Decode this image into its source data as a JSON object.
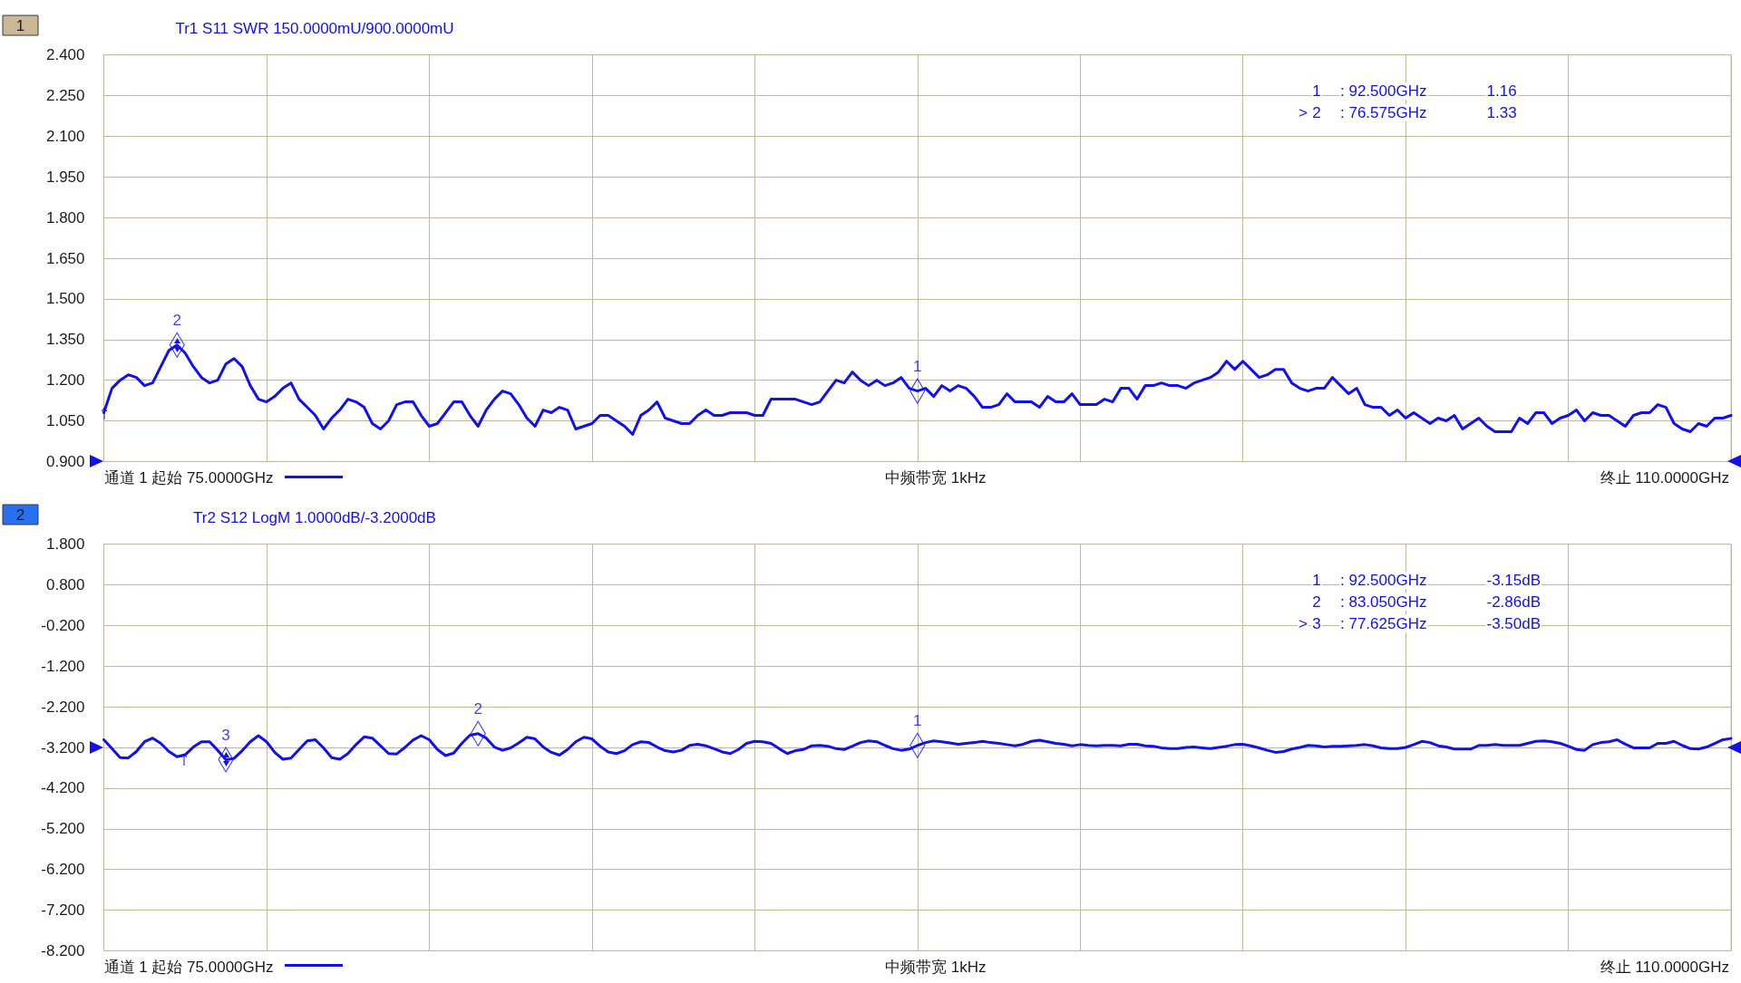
{
  "chart_data": [
    {
      "type": "line",
      "title": "Tr1 S11 SWR 150.0000mU/900.0000mU",
      "categories": [
        null,
        null,
        null,
        null,
        null,
        null,
        null,
        null,
        null,
        null,
        null,
        null,
        null,
        null,
        null,
        null,
        null,
        null,
        null,
        null,
        null,
        null,
        null,
        null,
        null,
        null,
        null,
        null,
        null,
        null,
        null,
        null,
        null,
        null,
        null,
        null,
        null,
        null,
        null,
        null,
        null,
        null,
        null,
        null,
        null,
        null,
        null,
        null,
        null,
        null,
        null,
        null,
        null,
        null,
        null,
        null,
        null,
        null,
        null,
        null,
        null,
        null,
        null,
        null,
        null,
        null,
        null,
        null,
        null,
        null,
        null,
        null,
        null,
        null,
        null,
        null,
        null,
        null,
        null,
        null,
        null,
        null,
        null,
        null,
        null,
        null,
        null,
        null,
        null,
        null,
        null,
        null,
        null,
        null,
        null,
        null,
        null,
        null,
        null,
        null,
        null,
        null,
        null,
        null,
        null,
        null,
        null,
        null,
        null,
        null,
        null,
        null,
        null,
        null,
        null,
        null,
        null,
        null,
        null,
        null,
        null,
        null,
        null,
        null,
        null,
        null,
        null,
        null,
        null,
        null,
        null,
        null,
        null,
        null,
        null,
        null,
        null,
        null,
        null,
        null,
        null,
        null,
        null,
        null,
        null,
        null,
        null,
        null,
        null,
        null,
        null,
        null,
        null,
        null,
        null,
        null,
        null,
        null,
        null,
        null,
        null,
        null,
        null,
        null,
        null,
        null,
        null,
        null,
        null,
        null,
        null,
        null,
        null,
        null,
        null,
        null,
        null,
        null,
        null,
        null,
        null,
        null,
        null,
        null,
        null,
        null,
        null,
        null,
        null,
        null,
        null,
        null,
        null,
        null,
        null,
        null,
        null,
        null,
        null,
        null,
        null
      ],
      "series": [
        {
          "color": "#1010f0",
          "values": [
            1.08,
            1.17,
            1.2,
            1.22,
            1.21,
            1.18,
            1.19,
            1.25,
            1.31,
            1.33,
            1.3,
            1.25,
            1.21,
            1.19,
            1.2,
            1.26,
            1.28,
            1.25,
            1.18,
            1.13,
            1.12,
            1.14,
            1.17,
            1.19,
            1.13,
            1.1,
            1.07,
            1.02,
            1.06,
            1.09,
            1.13,
            1.12,
            1.1,
            1.04,
            1.02,
            1.05,
            1.11,
            1.12,
            1.12,
            1.07,
            1.03,
            1.04,
            1.08,
            1.12,
            1.12,
            1.07,
            1.03,
            1.09,
            1.13,
            1.16,
            1.15,
            1.11,
            1.06,
            1.03,
            1.09,
            1.08,
            1.1,
            1.09,
            1.02,
            1.03,
            1.04,
            1.07,
            1.07,
            1.05,
            1.03,
            1.0,
            1.07,
            1.09,
            1.12,
            1.06,
            1.05,
            1.04,
            1.04,
            1.07,
            1.09,
            1.07,
            1.07,
            1.08,
            1.08,
            1.08,
            1.07,
            1.07,
            1.13,
            1.13,
            1.13,
            1.13,
            1.12,
            1.11,
            1.12,
            1.16,
            1.2,
            1.19,
            1.23,
            1.2,
            1.18,
            1.2,
            1.18,
            1.19,
            1.21,
            1.17,
            1.16,
            1.17,
            1.14,
            1.18,
            1.16,
            1.18,
            1.17,
            1.14,
            1.1,
            1.1,
            1.11,
            1.15,
            1.12,
            1.12,
            1.12,
            1.1,
            1.14,
            1.12,
            1.12,
            1.15,
            1.11,
            1.11,
            1.11,
            1.13,
            1.12,
            1.17,
            1.17,
            1.13,
            1.18,
            1.18,
            1.19,
            1.18,
            1.18,
            1.17,
            1.19,
            1.2,
            1.21,
            1.23,
            1.27,
            1.24,
            1.27,
            1.24,
            1.21,
            1.22,
            1.24,
            1.24,
            1.19,
            1.17,
            1.16,
            1.17,
            1.17,
            1.21,
            1.18,
            1.15,
            1.17,
            1.11,
            1.1,
            1.1,
            1.07,
            1.09,
            1.06,
            1.08,
            1.06,
            1.04,
            1.06,
            1.05,
            1.07,
            1.02,
            1.04,
            1.06,
            1.03,
            1.01,
            1.01,
            1.01,
            1.06,
            1.04,
            1.08,
            1.08,
            1.04,
            1.06,
            1.07,
            1.09,
            1.05,
            1.08,
            1.07,
            1.07,
            1.05,
            1.03,
            1.07,
            1.08,
            1.08,
            1.11,
            1.1,
            1.04,
            1.02,
            1.01,
            1.04,
            1.03,
            1.06,
            1.06,
            1.07
          ]
        },
        {
          "type": "scatter",
          "marker": "diamond",
          "color": "#1010f0",
          "values": [
            null,
            null,
            null,
            null,
            null,
            null,
            null,
            null,
            null,
            1.33,
            null,
            null,
            null,
            null,
            null,
            null,
            null,
            null,
            null,
            null,
            null,
            null,
            null,
            null,
            null,
            null,
            null,
            null,
            null,
            null,
            null,
            null,
            null,
            null,
            null,
            null,
            null,
            null,
            null,
            null,
            null,
            null,
            null,
            null,
            null,
            null,
            null,
            null,
            null,
            null,
            null,
            null,
            null,
            null,
            null,
            null,
            null,
            null,
            null,
            null,
            null,
            null,
            null,
            null,
            null,
            null,
            null,
            null,
            null,
            null,
            null,
            null,
            null,
            null,
            null,
            null,
            null,
            null,
            null,
            null,
            null,
            null,
            null,
            null,
            null,
            null,
            null,
            null,
            null,
            null,
            null,
            null,
            null,
            null,
            null,
            null,
            null,
            null,
            null,
            null,
            1.16,
            null,
            null,
            null,
            null,
            null,
            null,
            null,
            null,
            null,
            null,
            null,
            null,
            null,
            null,
            null,
            null,
            null,
            null,
            null,
            null,
            null,
            null,
            null,
            null,
            null,
            null,
            null,
            null,
            null,
            null,
            null,
            null,
            null,
            null,
            null,
            null,
            null,
            null,
            null,
            null,
            null,
            null,
            null,
            null,
            null,
            null,
            null,
            null,
            null,
            null,
            null,
            null,
            null,
            null,
            null,
            null,
            null,
            null,
            null,
            null,
            null,
            null,
            null,
            null,
            null,
            null,
            null,
            null,
            null,
            null,
            null,
            null,
            null,
            null,
            null,
            null,
            null,
            null,
            null,
            null,
            null,
            null,
            null,
            null,
            null,
            null,
            null,
            null,
            null,
            null,
            null,
            null,
            null,
            null,
            null,
            null,
            null,
            null,
            null,
            null
          ]
        }
      ],
      "ylim": [
        0.9,
        2.4
      ],
      "yticks": [
        {
          "value": 0.9,
          "label": "0.900"
        },
        {
          "value": 1.05,
          "label": "1.050"
        },
        {
          "value": 1.2,
          "label": "1.200"
        },
        {
          "value": 1.35,
          "label": "1.350"
        },
        {
          "value": 1.5,
          "label": "1.500"
        },
        {
          "value": 1.65,
          "label": "1.650"
        },
        {
          "value": 1.8,
          "label": "1.800"
        },
        {
          "value": 1.95,
          "label": "1.950"
        },
        {
          "value": 2.1,
          "label": "2.100"
        },
        {
          "value": 2.25,
          "label": "2.250"
        },
        {
          "value": 2.4,
          "label": "2.400"
        }
      ],
      "grid": true,
      "tick_labels": "y",
      "annotations": [
        "1",
        "通道 1 起始 75.0000GHz",
        "中频带宽 1kHz",
        "终止 110.0000GHz",
        "1 : 92.500GHz 1.16",
        "> 2 : 76.575GHz 1.33",
        "2",
        "1"
      ]
    },
    {
      "type": "line",
      "title": "Tr2 S12 LogM 1.0000dB/-3.2000dB",
      "categories": [
        null,
        null,
        null,
        null,
        null,
        null,
        null,
        null,
        null,
        null,
        null,
        null,
        null,
        null,
        null,
        null,
        null,
        null,
        null,
        null,
        null,
        null,
        null,
        null,
        null,
        null,
        null,
        null,
        null,
        null,
        null,
        null,
        null,
        null,
        null,
        null,
        null,
        null,
        null,
        null,
        null,
        null,
        null,
        null,
        null,
        null,
        null,
        null,
        null,
        null,
        null,
        null,
        null,
        null,
        null,
        null,
        null,
        null,
        null,
        null,
        null,
        null,
        null,
        null,
        null,
        null,
        null,
        null,
        null,
        null,
        null,
        null,
        null,
        null,
        null,
        null,
        null,
        null,
        null,
        null,
        null,
        null,
        null,
        null,
        null,
        null,
        null,
        null,
        null,
        null,
        null,
        null,
        null,
        null,
        null,
        null,
        null,
        null,
        null,
        null,
        null,
        null,
        null,
        null,
        null,
        null,
        null,
        null,
        null,
        null,
        null,
        null,
        null,
        null,
        null,
        null,
        null,
        null,
        null,
        null,
        null,
        null,
        null,
        null,
        null,
        null,
        null,
        null,
        null,
        null,
        null,
        null,
        null,
        null,
        null,
        null,
        null,
        null,
        null,
        null,
        null,
        null,
        null,
        null,
        null,
        null,
        null,
        null,
        null,
        null,
        null,
        null,
        null,
        null,
        null,
        null,
        null,
        null,
        null,
        null,
        null,
        null,
        null,
        null,
        null,
        null,
        null,
        null,
        null,
        null,
        null,
        null,
        null,
        null,
        null,
        null,
        null,
        null,
        null,
        null,
        null,
        null,
        null,
        null,
        null,
        null,
        null,
        null,
        null,
        null,
        null,
        null,
        null,
        null,
        null,
        null,
        null,
        null,
        null,
        null,
        null
      ],
      "series": [
        {
          "color": "#1010f0",
          "values": [
            -3.01,
            -3.23,
            -3.45,
            -3.46,
            -3.3,
            -3.06,
            -2.97,
            -3.1,
            -3.3,
            -3.43,
            -3.38,
            -3.19,
            -3.06,
            -3.06,
            -3.27,
            -3.5,
            -3.47,
            -3.28,
            -3.06,
            -2.91,
            -3.06,
            -3.32,
            -3.49,
            -3.46,
            -3.25,
            -3.04,
            -3.01,
            -3.21,
            -3.45,
            -3.49,
            -3.35,
            -3.13,
            -2.94,
            -2.97,
            -3.16,
            -3.35,
            -3.36,
            -3.2,
            -3.02,
            -2.91,
            -3.01,
            -3.25,
            -3.4,
            -3.34,
            -3.1,
            -2.9,
            -2.86,
            -2.97,
            -3.19,
            -3.27,
            -3.21,
            -3.09,
            -2.95,
            -2.99,
            -3.19,
            -3.32,
            -3.39,
            -3.25,
            -3.06,
            -2.95,
            -2.99,
            -3.17,
            -3.31,
            -3.35,
            -3.28,
            -3.13,
            -3.06,
            -3.08,
            -3.19,
            -3.28,
            -3.31,
            -3.27,
            -3.15,
            -3.12,
            -3.16,
            -3.23,
            -3.31,
            -3.35,
            -3.25,
            -3.1,
            -3.05,
            -3.06,
            -3.1,
            -3.23,
            -3.35,
            -3.28,
            -3.25,
            -3.16,
            -3.15,
            -3.17,
            -3.23,
            -3.25,
            -3.17,
            -3.08,
            -3.04,
            -3.06,
            -3.15,
            -3.23,
            -3.27,
            -3.24,
            -3.15,
            -3.08,
            -3.04,
            -3.06,
            -3.09,
            -3.12,
            -3.1,
            -3.08,
            -3.05,
            -3.08,
            -3.1,
            -3.13,
            -3.16,
            -3.12,
            -3.05,
            -3.02,
            -3.06,
            -3.1,
            -3.12,
            -3.16,
            -3.13,
            -3.15,
            -3.16,
            -3.15,
            -3.15,
            -3.16,
            -3.12,
            -3.12,
            -3.16,
            -3.17,
            -3.21,
            -3.23,
            -3.23,
            -3.2,
            -3.19,
            -3.21,
            -3.23,
            -3.2,
            -3.17,
            -3.13,
            -3.12,
            -3.16,
            -3.21,
            -3.27,
            -3.32,
            -3.3,
            -3.24,
            -3.2,
            -3.15,
            -3.16,
            -3.19,
            -3.17,
            -3.17,
            -3.16,
            -3.15,
            -3.13,
            -3.16,
            -3.21,
            -3.23,
            -3.23,
            -3.2,
            -3.13,
            -3.05,
            -3.08,
            -3.16,
            -3.19,
            -3.24,
            -3.24,
            -3.24,
            -3.15,
            -3.15,
            -3.13,
            -3.15,
            -3.15,
            -3.15,
            -3.1,
            -3.05,
            -3.04,
            -3.06,
            -3.1,
            -3.17,
            -3.25,
            -3.27,
            -3.13,
            -3.08,
            -3.06,
            -3.01,
            -3.12,
            -3.21,
            -3.21,
            -3.21,
            -3.1,
            -3.1,
            -3.05,
            -3.15,
            -3.23,
            -3.24,
            -3.19,
            -3.1,
            -3.01,
            -2.98
          ]
        },
        {
          "type": "scatter",
          "marker": "diamond",
          "color": "#1010f0",
          "values": [
            null,
            null,
            null,
            null,
            null,
            null,
            null,
            null,
            null,
            null,
            null,
            null,
            null,
            null,
            null,
            -3.5,
            null,
            null,
            null,
            null,
            null,
            null,
            null,
            null,
            null,
            null,
            null,
            null,
            null,
            null,
            null,
            null,
            null,
            null,
            null,
            null,
            null,
            null,
            null,
            null,
            null,
            null,
            null,
            null,
            null,
            null,
            -2.86,
            null,
            null,
            null,
            null,
            null,
            null,
            null,
            null,
            null,
            null,
            null,
            null,
            null,
            null,
            null,
            null,
            null,
            null,
            null,
            null,
            null,
            null,
            null,
            null,
            null,
            null,
            null,
            null,
            null,
            null,
            null,
            null,
            null,
            null,
            null,
            null,
            null,
            null,
            null,
            null,
            null,
            null,
            null,
            null,
            null,
            null,
            null,
            null,
            null,
            null,
            null,
            null,
            null,
            -3.15,
            null,
            null,
            null,
            null,
            null,
            null,
            null,
            null,
            null,
            null,
            null,
            null,
            null,
            null,
            null,
            null,
            null,
            null,
            null,
            null,
            null,
            null,
            null,
            null,
            null,
            null,
            null,
            null,
            null,
            null,
            null,
            null,
            null,
            null,
            null,
            null,
            null,
            null,
            null,
            null,
            null,
            null,
            null,
            null,
            null,
            null,
            null,
            null,
            null,
            null,
            null,
            null,
            null,
            null,
            null,
            null,
            null,
            null,
            null,
            null,
            null,
            null,
            null,
            null,
            null,
            null,
            null,
            null,
            null,
            null,
            null,
            null,
            null,
            null,
            null,
            null,
            null,
            null,
            null,
            null,
            null,
            null,
            null,
            null,
            null,
            null,
            null,
            null,
            null,
            null,
            null,
            null,
            null,
            null,
            null,
            null,
            null,
            null,
            null,
            null
          ]
        }
      ],
      "ylim": [
        -8.2,
        1.8
      ],
      "yticks": [
        {
          "value": -8.2,
          "label": "-8.200"
        },
        {
          "value": -7.2,
          "label": "-7.200"
        },
        {
          "value": -6.2,
          "label": "-6.200"
        },
        {
          "value": -5.2,
          "label": "-5.200"
        },
        {
          "value": -4.2,
          "label": "-4.200"
        },
        {
          "value": -3.2,
          "label": "-3.200"
        },
        {
          "value": -2.2,
          "label": "-2.200"
        },
        {
          "value": -1.2,
          "label": "-1.200"
        },
        {
          "value": -0.2,
          "label": "-0.200"
        },
        {
          "value": 0.8,
          "label": "0.800"
        },
        {
          "value": 1.8,
          "label": "1.800"
        }
      ],
      "grid": true,
      "tick_labels": "y",
      "annotations": [
        "2",
        "通道 1 起始 75.0000GHz",
        "中频带宽 1kHz",
        "终止 110.0000GHz",
        "1 : 92.500GHz -3.15dB",
        "2 : 83.050GHz -2.86dB",
        "> 3 : 77.625GHz -3.50dB",
        "3",
        "2",
        "1"
      ]
    }
  ]
}
